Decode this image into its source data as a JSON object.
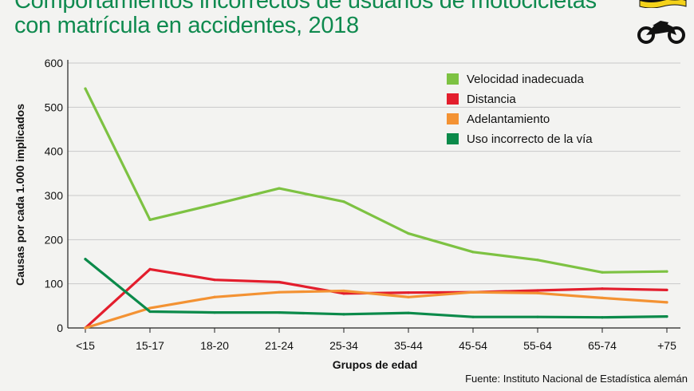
{
  "header": {
    "title_line1": "Comportamientos incorrectos de usuarios de motocicletas",
    "title_line2": "con matrícula en accidentes, 2018",
    "flag_icon": "flag-icon",
    "motorcycle_icon": "motorcycle-icon"
  },
  "colors": {
    "title": "#0f8a4f",
    "velocidad": "#7dc242",
    "distancia": "#e31e2d",
    "adelantamiento": "#f39233",
    "uso": "#0b8a4a"
  },
  "chart_data": {
    "type": "line",
    "xlabel": "Grupos de edad",
    "ylabel": "Causas por cada 1.000 implicados",
    "ylim": [
      0,
      600
    ],
    "yticks": [
      0,
      100,
      200,
      300,
      400,
      500,
      600
    ],
    "grid": true,
    "legend_position": "top-right",
    "categories": [
      "<15",
      "15-17",
      "18-20",
      "21-24",
      "25-34",
      "35-44",
      "45-54",
      "55-64",
      "65-74",
      "+75"
    ],
    "series": [
      {
        "name": "Velocidad inadecuada",
        "color": "#7dc242",
        "values": [
          542,
          245,
          280,
          316,
          286,
          214,
          172,
          154,
          126,
          128
        ]
      },
      {
        "name": "Distancia",
        "color": "#e31e2d",
        "values": [
          0,
          133,
          109,
          104,
          78,
          80,
          81,
          85,
          89,
          86
        ]
      },
      {
        "name": "Adelantamiento",
        "color": "#f39233",
        "values": [
          0,
          45,
          70,
          81,
          84,
          70,
          81,
          79,
          68,
          58
        ]
      },
      {
        "name": "Uso incorrecto de la vía",
        "color": "#0b8a4a",
        "values": [
          156,
          37,
          35,
          35,
          31,
          34,
          25,
          25,
          24,
          26
        ]
      }
    ]
  },
  "source": "Fuente: Instituto Nacional de Estadística alemán"
}
